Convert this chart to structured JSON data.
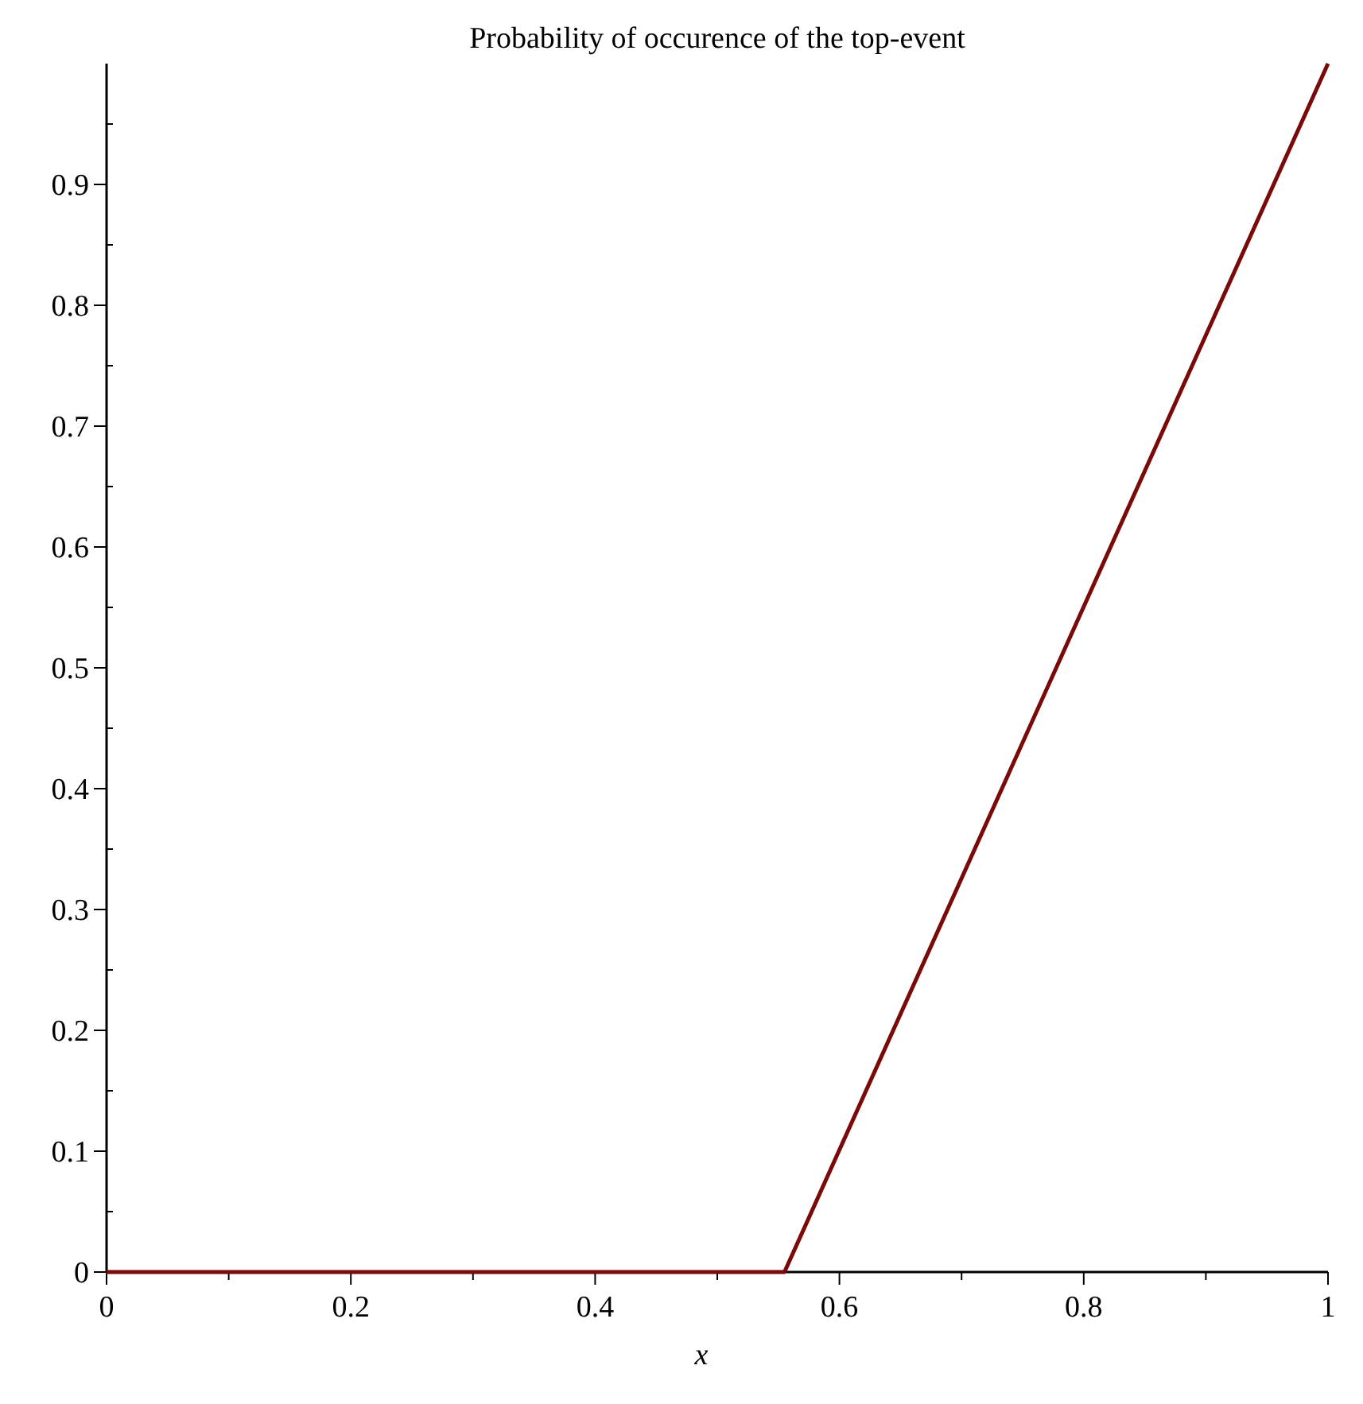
{
  "chart_data": {
    "type": "line",
    "title": "Probability of occurence of the top-event",
    "xlabel": "x",
    "x": [
      0,
      0.555,
      1
    ],
    "series": [
      {
        "color": "#7a0a0a",
        "values": [
          0,
          0,
          1
        ]
      }
    ],
    "xlim": [
      0,
      1
    ],
    "ylim": [
      0,
      1
    ],
    "xticks": [
      0,
      {
        "value": 0.1,
        "label": null
      },
      0.2,
      {
        "value": 0.3,
        "label": null
      },
      0.4,
      {
        "value": 0.5,
        "label": null
      },
      0.6,
      {
        "value": 0.7,
        "label": null
      },
      0.8,
      {
        "value": 0.9,
        "label": null
      },
      1
    ],
    "yticks": [
      0,
      {
        "value": 0.05,
        "label": null
      },
      0.1,
      {
        "value": 0.15,
        "label": null
      },
      0.2,
      {
        "value": 0.25,
        "label": null
      },
      0.3,
      {
        "value": 0.35,
        "label": null
      },
      0.4,
      {
        "value": 0.45,
        "label": null
      },
      0.5,
      {
        "value": 0.55,
        "label": null
      },
      0.6,
      {
        "value": 0.65,
        "label": null
      },
      0.7,
      {
        "value": 0.75,
        "label": null
      },
      0.8,
      {
        "value": 0.85,
        "label": null
      },
      0.9,
      {
        "value": 0.95,
        "label": null
      }
    ],
    "grid": false,
    "marker": "none",
    "line_style": "solid"
  }
}
